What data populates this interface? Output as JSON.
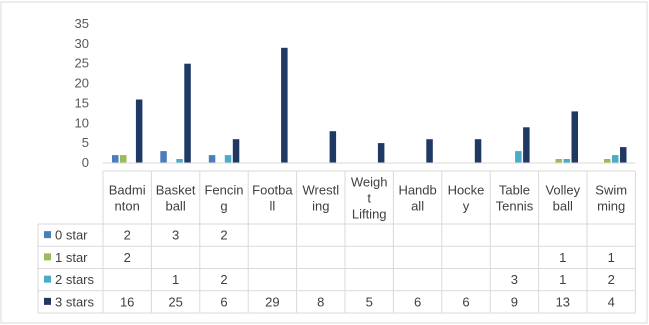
{
  "chart_data": {
    "type": "bar",
    "title": "",
    "xlabel": "",
    "ylabel": "",
    "ylim": [
      0,
      35
    ],
    "yticks": [
      0,
      5,
      10,
      15,
      20,
      25,
      30,
      35
    ],
    "grid": false,
    "legend_position": "data-table-left",
    "categories": [
      {
        "name": "Badminton",
        "lines": [
          "Badmi",
          "nton"
        ]
      },
      {
        "name": "Basketball",
        "lines": [
          "Basket",
          "ball"
        ]
      },
      {
        "name": "Fencing",
        "lines": [
          "Fencin",
          "g"
        ]
      },
      {
        "name": "Football",
        "lines": [
          "Footba",
          "ll"
        ]
      },
      {
        "name": "Wrestling",
        "lines": [
          "Wrestl",
          "ing"
        ]
      },
      {
        "name": "Weight Lifting",
        "lines": [
          "Weigh",
          "t",
          "Lifting"
        ]
      },
      {
        "name": "Handball",
        "lines": [
          "Handb",
          "all"
        ]
      },
      {
        "name": "Hockey",
        "lines": [
          "Hocke",
          "y"
        ]
      },
      {
        "name": "Table Tennis",
        "lines": [
          "Table",
          "Tennis"
        ]
      },
      {
        "name": "Volleyball",
        "lines": [
          "Volley",
          "ball"
        ]
      },
      {
        "name": "Swimming",
        "lines": [
          "Swim",
          "ming"
        ]
      }
    ],
    "series": [
      {
        "name": "0 star",
        "color": "#4a7ebb",
        "values": [
          2,
          3,
          2,
          null,
          null,
          null,
          null,
          null,
          null,
          null,
          null
        ]
      },
      {
        "name": "1 star",
        "color": "#9bbb59",
        "values": [
          2,
          null,
          null,
          null,
          null,
          null,
          null,
          null,
          null,
          1,
          1
        ]
      },
      {
        "name": "2 stars",
        "color": "#4bacc6",
        "values": [
          null,
          1,
          2,
          null,
          null,
          null,
          null,
          null,
          3,
          1,
          2
        ]
      },
      {
        "name": "3 stars",
        "color": "#1f3864",
        "values": [
          16,
          25,
          6,
          29,
          8,
          5,
          6,
          6,
          9,
          13,
          4
        ]
      }
    ]
  }
}
